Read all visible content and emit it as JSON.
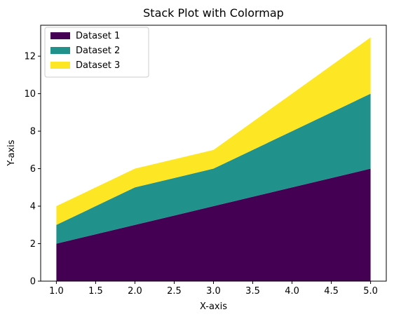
{
  "chart_data": {
    "type": "area",
    "stacked": true,
    "title": "Stack Plot with Colormap",
    "xlabel": "X-axis",
    "ylabel": "Y-axis",
    "x": [
      1,
      2,
      3,
      4,
      5
    ],
    "xlim": [
      0.8,
      5.2
    ],
    "ylim": [
      0,
      13.65
    ],
    "xticks": [
      1.0,
      1.5,
      2.0,
      2.5,
      3.0,
      3.5,
      4.0,
      4.5,
      5.0
    ],
    "xtick_labels": [
      "1.0",
      "1.5",
      "2.0",
      "2.5",
      "3.0",
      "3.5",
      "4.0",
      "4.5",
      "5.0"
    ],
    "yticks": [
      0,
      2,
      4,
      6,
      8,
      10,
      12
    ],
    "ytick_labels": [
      "0",
      "2",
      "4",
      "6",
      "8",
      "10",
      "12"
    ],
    "grid": false,
    "legend_position": "top-left",
    "series": [
      {
        "name": "Dataset 1",
        "values": [
          2,
          3,
          4,
          5,
          6
        ],
        "color": "#440154"
      },
      {
        "name": "Dataset 2",
        "values": [
          1,
          2,
          2,
          3,
          4
        ],
        "color": "#21918c"
      },
      {
        "name": "Dataset 3",
        "values": [
          1,
          1,
          1,
          2,
          3
        ],
        "color": "#fde725"
      }
    ]
  }
}
